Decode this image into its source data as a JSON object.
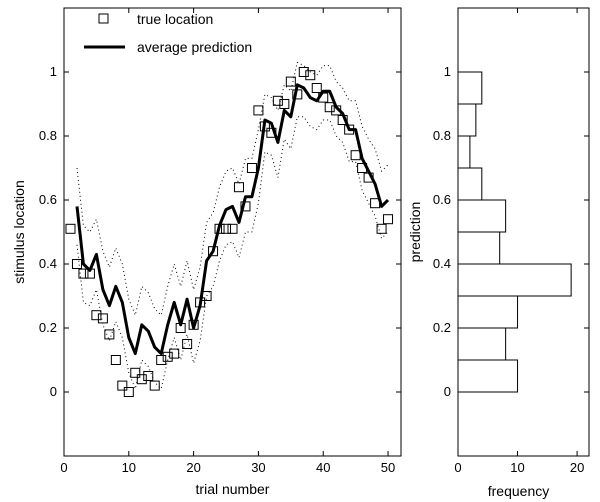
{
  "chart_data": [
    {
      "type": "line",
      "xlabel": "trial number",
      "ylabel": "stimulus location",
      "xlim": [
        0,
        52
      ],
      "ylim": [
        -0.2,
        1.2
      ],
      "xticks": [
        0,
        10,
        20,
        30,
        40,
        50
      ],
      "yticks": [
        0,
        0.2,
        0.4,
        0.6,
        0.8,
        1
      ],
      "legend": {
        "placement": "top-left",
        "entries": [
          "true location",
          "average prediction"
        ]
      },
      "series": [
        {
          "name": "true location",
          "style": "square-markers",
          "x": [
            1,
            2,
            3,
            4,
            5,
            6,
            7,
            8,
            9,
            10,
            11,
            12,
            13,
            14,
            15,
            16,
            17,
            18,
            19,
            20,
            21,
            22,
            23,
            24,
            25,
            26,
            27,
            28,
            29,
            30,
            31,
            32,
            33,
            34,
            35,
            36,
            37,
            38,
            39,
            40,
            41,
            42,
            43,
            44,
            45,
            46,
            47,
            48,
            49,
            50
          ],
          "y": [
            0.51,
            0.4,
            0.37,
            0.37,
            0.24,
            0.23,
            0.18,
            0.1,
            0.02,
            0.0,
            0.06,
            0.04,
            0.05,
            0.02,
            0.1,
            0.11,
            0.12,
            0.2,
            0.15,
            0.21,
            0.28,
            0.3,
            0.44,
            0.51,
            0.51,
            0.51,
            0.64,
            0.58,
            0.7,
            0.88,
            0.83,
            0.81,
            0.91,
            0.9,
            0.97,
            0.93,
            1.0,
            0.99,
            0.95,
            0.92,
            0.89,
            0.88,
            0.85,
            0.82,
            0.74,
            0.7,
            0.67,
            0.59,
            0.51,
            0.54
          ]
        },
        {
          "name": "average prediction",
          "style": "thick-line",
          "x": [
            2,
            3,
            4,
            5,
            6,
            7,
            8,
            9,
            10,
            11,
            12,
            13,
            14,
            15,
            16,
            17,
            18,
            19,
            20,
            21,
            22,
            23,
            24,
            25,
            26,
            27,
            28,
            29,
            30,
            31,
            32,
            33,
            34,
            35,
            36,
            37,
            38,
            39,
            40,
            41,
            42,
            43,
            44,
            45,
            46,
            47,
            48,
            49,
            50
          ],
          "y": [
            0.58,
            0.4,
            0.38,
            0.43,
            0.32,
            0.27,
            0.33,
            0.28,
            0.17,
            0.12,
            0.21,
            0.19,
            0.14,
            0.12,
            0.21,
            0.28,
            0.21,
            0.29,
            0.2,
            0.27,
            0.41,
            0.44,
            0.52,
            0.57,
            0.58,
            0.53,
            0.61,
            0.61,
            0.7,
            0.85,
            0.84,
            0.78,
            0.88,
            0.86,
            0.96,
            0.95,
            0.92,
            0.91,
            0.94,
            0.94,
            0.89,
            0.87,
            0.82,
            0.82,
            0.73,
            0.69,
            0.65,
            0.58,
            0.6
          ]
        },
        {
          "style": "dotted-upper",
          "x": [
            2,
            3,
            4,
            5,
            6,
            7,
            8,
            9,
            10,
            11,
            12,
            13,
            14,
            15,
            16,
            17,
            18,
            19,
            20,
            21,
            22,
            23,
            24,
            25,
            26,
            27,
            28,
            29,
            30,
            31,
            32,
            33,
            34,
            35,
            36,
            37,
            38,
            39,
            40,
            41,
            42,
            43,
            44,
            45,
            46,
            47,
            48,
            49,
            50
          ],
          "y": [
            0.7,
            0.52,
            0.5,
            0.54,
            0.44,
            0.39,
            0.45,
            0.4,
            0.29,
            0.24,
            0.33,
            0.31,
            0.26,
            0.24,
            0.33,
            0.4,
            0.33,
            0.41,
            0.32,
            0.39,
            0.53,
            0.56,
            0.64,
            0.69,
            0.7,
            0.65,
            0.73,
            0.73,
            0.82,
            0.93,
            0.92,
            0.88,
            0.96,
            0.94,
            1.03,
            1.02,
            1.0,
            0.99,
            1.02,
            1.02,
            0.97,
            0.95,
            0.91,
            0.91,
            0.83,
            0.79,
            0.76,
            0.69,
            0.71
          ]
        },
        {
          "style": "dotted-lower",
          "x": [
            2,
            3,
            4,
            5,
            6,
            7,
            8,
            9,
            10,
            11,
            12,
            13,
            14,
            15,
            16,
            17,
            18,
            19,
            20,
            21,
            22,
            23,
            24,
            25,
            26,
            27,
            28,
            29,
            30,
            31,
            32,
            33,
            34,
            35,
            36,
            37,
            38,
            39,
            40,
            41,
            42,
            43,
            44,
            45,
            46,
            47,
            48,
            49,
            50
          ],
          "y": [
            0.46,
            0.28,
            0.27,
            0.32,
            0.21,
            0.16,
            0.22,
            0.17,
            0.06,
            0.01,
            0.1,
            0.08,
            0.03,
            0.01,
            0.1,
            0.17,
            0.1,
            0.18,
            0.09,
            0.16,
            0.3,
            0.33,
            0.41,
            0.46,
            0.47,
            0.42,
            0.5,
            0.5,
            0.59,
            0.75,
            0.74,
            0.67,
            0.79,
            0.76,
            0.86,
            0.86,
            0.83,
            0.82,
            0.85,
            0.85,
            0.8,
            0.78,
            0.72,
            0.72,
            0.63,
            0.59,
            0.55,
            0.48,
            0.5
          ]
        }
      ]
    },
    {
      "type": "bar",
      "orientation": "horizontal",
      "xlabel": "frequency",
      "ylabel": "prediction",
      "xlim": [
        0,
        22
      ],
      "ylim": [
        -0.2,
        1.2
      ],
      "xticks": [
        0,
        10,
        20
      ],
      "yticks": [
        0,
        0.2,
        0.4,
        0.6,
        0.8,
        1
      ],
      "bin_width": 0.1,
      "categories": [
        0,
        0.1,
        0.2,
        0.3,
        0.4,
        0.5,
        0.6,
        0.7,
        0.8,
        0.9,
        1.0
      ],
      "values": [
        10,
        8,
        10,
        19,
        7,
        8,
        4,
        2,
        3,
        4,
        0
      ]
    }
  ]
}
